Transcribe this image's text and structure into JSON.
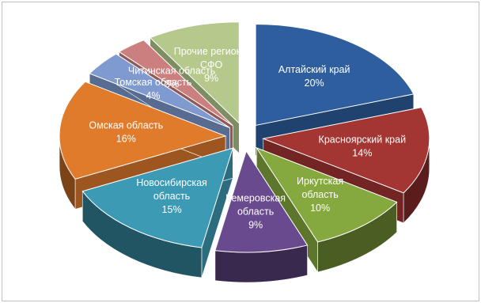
{
  "chart_data": {
    "type": "pie",
    "title": "",
    "exploded": true,
    "three_d": true,
    "legend": "none",
    "slices": [
      {
        "label": [
          "Алтайский край"
        ],
        "value": 20,
        "display": "20%",
        "color": "#2E5E9E"
      },
      {
        "label": [
          "Красноярский край"
        ],
        "value": 14,
        "display": "14%",
        "color": "#A33532"
      },
      {
        "label": [
          "Иркутская",
          "область"
        ],
        "value": 10,
        "display": "10%",
        "color": "#86A93F"
      },
      {
        "label": [
          "Кемеровская",
          "область"
        ],
        "value": 9,
        "display": "9%",
        "color": "#6A4A8E"
      },
      {
        "label": [
          "Новосибирская",
          "область"
        ],
        "value": 15,
        "display": "15%",
        "color": "#3D9AB5"
      },
      {
        "label": [
          "Омская область"
        ],
        "value": 16,
        "display": "16%",
        "color": "#E07B2C"
      },
      {
        "label": [
          "Томская область"
        ],
        "value": 4,
        "display": "4%",
        "color": "#7E9ACF"
      },
      {
        "label": [
          "Читинская область"
        ],
        "value": 3,
        "display": "3%",
        "color": "#CC7F7F"
      },
      {
        "label": [
          "Прочие регионы",
          "СФО"
        ],
        "value": 9,
        "display": "9%",
        "color": "#B5C98C"
      }
    ]
  }
}
